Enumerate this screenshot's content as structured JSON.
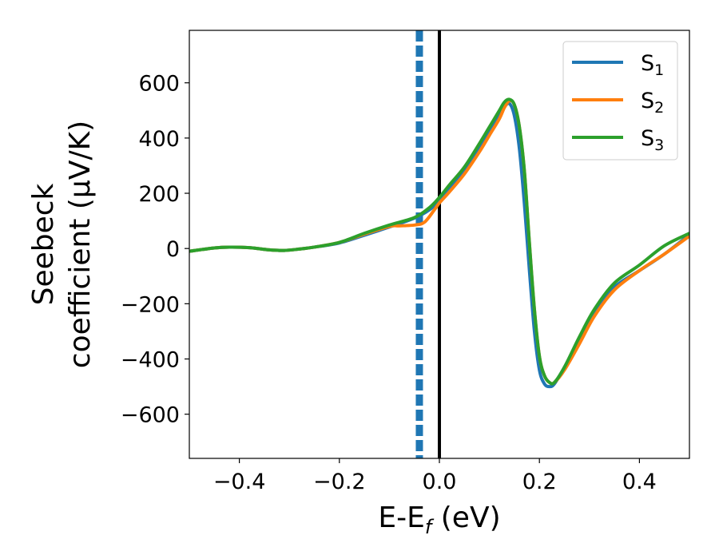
{
  "chart_data": {
    "type": "line",
    "xlabel": "E-E",
    "xlabel_sub": "f",
    "xlabel_unit": " (eV)",
    "ylabel_line1": "Seebeck",
    "ylabel_line2": "coefficient  (μV/K)",
    "xlim": [
      -0.5,
      0.5
    ],
    "ylim": [
      -760,
      790
    ],
    "xticks": [
      -0.4,
      -0.2,
      0.0,
      0.2,
      0.4
    ],
    "xtick_labels": [
      "−0.4",
      "−0.2",
      "0.0",
      "0.2",
      "0.4"
    ],
    "yticks": [
      -600,
      -400,
      -200,
      0,
      200,
      400,
      600
    ],
    "ytick_labels": [
      "−600",
      "−400",
      "−200",
      "0",
      "200",
      "400",
      "600"
    ],
    "grid": false,
    "legend_position": "top-right",
    "vlines": [
      {
        "x": -0.04,
        "style": "dashed",
        "color": "#1f77b4"
      },
      {
        "x": 0.0,
        "style": "solid",
        "color": "#000000"
      }
    ],
    "series": [
      {
        "name": "S",
        "sub": "1",
        "color": "#1f77b4",
        "x": [
          -0.5,
          -0.45,
          -0.42,
          -0.38,
          -0.34,
          -0.31,
          -0.28,
          -0.25,
          -0.2,
          -0.15,
          -0.1,
          -0.05,
          -0.02,
          0.0,
          0.02,
          0.05,
          0.08,
          0.1,
          0.12,
          0.13,
          0.14,
          0.15,
          0.16,
          0.17,
          0.18,
          0.19,
          0.2,
          0.21,
          0.22,
          0.23,
          0.25,
          0.28,
          0.31,
          0.35,
          0.4,
          0.45,
          0.5
        ],
        "y": [
          -10,
          2,
          5,
          3,
          -5,
          -7,
          -2,
          5,
          20,
          48,
          78,
          110,
          140,
          175,
          215,
          280,
          360,
          420,
          480,
          512,
          525,
          480,
          360,
          160,
          -80,
          -300,
          -440,
          -490,
          -500,
          -490,
          -430,
          -330,
          -230,
          -140,
          -80,
          -20,
          50
        ]
      },
      {
        "name": "S",
        "sub": "2",
        "color": "#ff7f0e",
        "x": [
          -0.5,
          -0.45,
          -0.42,
          -0.38,
          -0.34,
          -0.31,
          -0.28,
          -0.25,
          -0.2,
          -0.15,
          -0.1,
          -0.08,
          -0.05,
          -0.03,
          -0.01,
          0.0,
          0.02,
          0.05,
          0.08,
          0.1,
          0.12,
          0.13,
          0.14,
          0.15,
          0.16,
          0.17,
          0.18,
          0.19,
          0.2,
          0.21,
          0.22,
          0.23,
          0.25,
          0.28,
          0.31,
          0.35,
          0.4,
          0.45,
          0.5
        ],
        "y": [
          -10,
          2,
          5,
          3,
          -5,
          -7,
          -2,
          5,
          22,
          52,
          80,
          82,
          85,
          95,
          140,
          165,
          205,
          270,
          350,
          410,
          470,
          510,
          535,
          520,
          440,
          280,
          20,
          -220,
          -390,
          -460,
          -485,
          -485,
          -440,
          -345,
          -245,
          -150,
          -80,
          -20,
          45
        ]
      },
      {
        "name": "S",
        "sub": "3",
        "color": "#2ca02c",
        "x": [
          -0.5,
          -0.45,
          -0.42,
          -0.38,
          -0.34,
          -0.31,
          -0.28,
          -0.25,
          -0.2,
          -0.15,
          -0.1,
          -0.05,
          -0.02,
          0.0,
          0.02,
          0.05,
          0.08,
          0.1,
          0.12,
          0.13,
          0.14,
          0.15,
          0.16,
          0.17,
          0.18,
          0.19,
          0.2,
          0.21,
          0.22,
          0.23,
          0.25,
          0.28,
          0.31,
          0.35,
          0.4,
          0.45,
          0.5
        ],
        "y": [
          -10,
          2,
          5,
          3,
          -5,
          -7,
          -2,
          5,
          22,
          55,
          85,
          112,
          148,
          185,
          230,
          295,
          380,
          440,
          500,
          530,
          540,
          520,
          440,
          280,
          20,
          -220,
          -390,
          -460,
          -485,
          -485,
          -430,
          -320,
          -220,
          -125,
          -60,
          10,
          55
        ]
      }
    ]
  }
}
